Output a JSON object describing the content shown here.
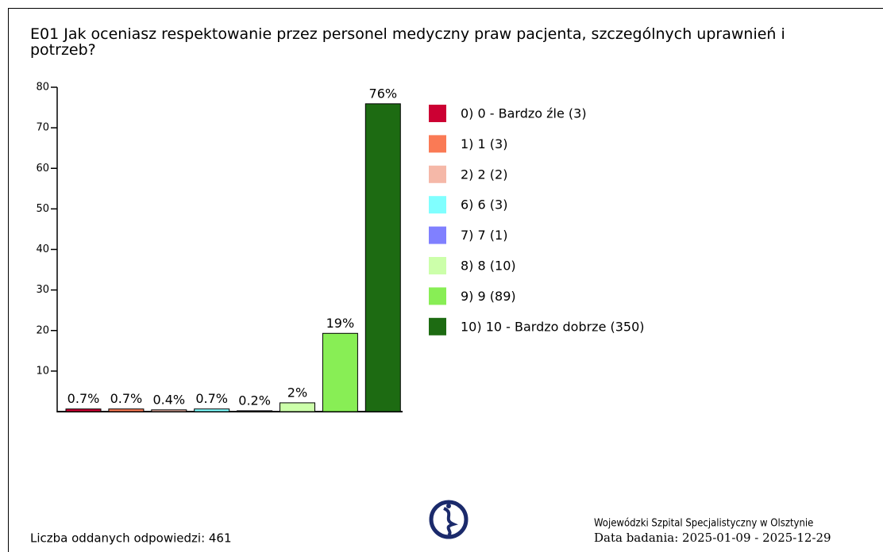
{
  "chart_data": {
    "type": "bar",
    "title": "E01 Jak oceniasz respektowanie przez personel medyczny praw pacjenta, szczególnych uprawnień i potrzeb?",
    "categories": [
      "0) 0 - Bardzo źle (3)",
      "1) 1 (3)",
      "2) 2 (2)",
      "6) 6 (3)",
      "7) 7 (1)",
      "8) 8 (10)",
      "9) 9 (89)",
      "10) 10 - Bardzo dobrze (350)"
    ],
    "values": [
      0.651,
      0.651,
      0.434,
      0.651,
      0.217,
      2.169,
      19.306,
      75.922
    ],
    "value_labels": [
      "0.7%",
      "0.7%",
      "0.4%",
      "0.7%",
      "0.2%",
      "2%",
      "19%",
      "76%"
    ],
    "colors": [
      "#cc0033",
      "#fa7a55",
      "#f5b8a8",
      "#80ffff",
      "#8080ff",
      "#ccffaa",
      "#88ee55",
      "#1d6b12"
    ],
    "ylim": [
      0,
      80
    ],
    "yticks": [
      10,
      20,
      30,
      40,
      50,
      60,
      70,
      80
    ],
    "footer": {
      "responses": "Liczba oddanych odpowiedzi: 461",
      "hospital": "Wojewódzki Szpital Specjalistyczny w Olsztynie",
      "dates": "Data badania: 2025-01-09 - 2025-12-29"
    }
  }
}
